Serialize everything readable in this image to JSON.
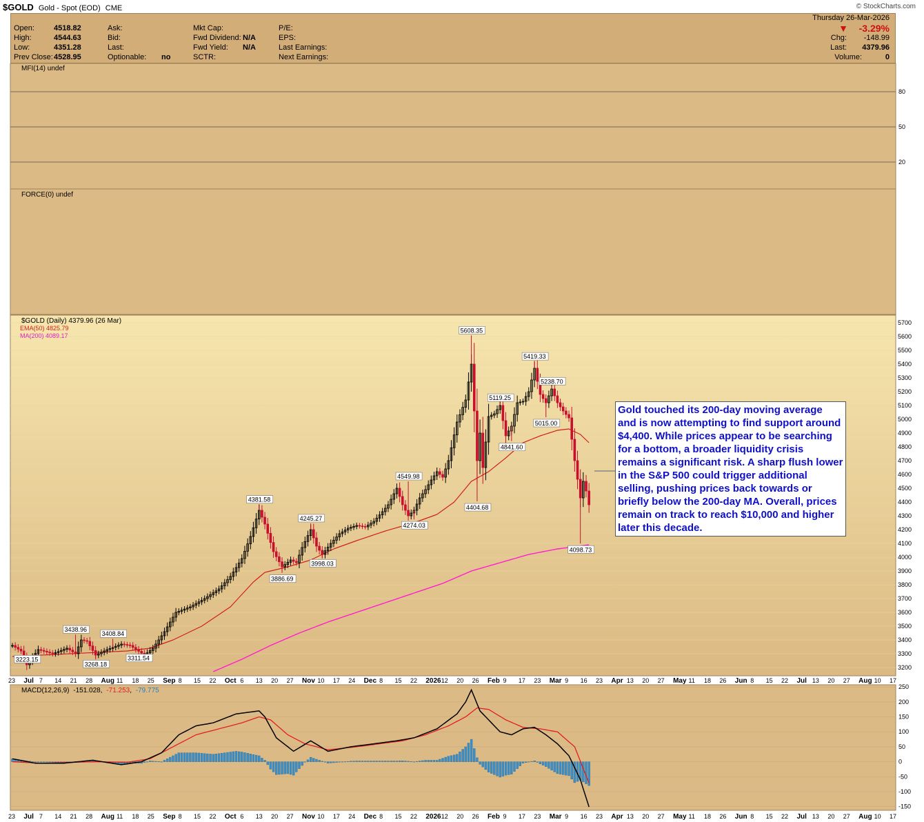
{
  "header": {
    "symbol": "$GOLD",
    "name": "Gold - Spot (EOD)",
    "exchange": "CME",
    "brand": "© StockCharts.com"
  },
  "quote": {
    "open_label": "Open:",
    "open": "4518.82",
    "high_label": "High:",
    "high": "4544.63",
    "low_label": "Low:",
    "low": "4351.28",
    "prev_label": "Prev Close:",
    "prev": "4528.95",
    "ask_label": "Ask:",
    "bid_label": "Bid:",
    "last_label_mid": "Last:",
    "optionable_label": "Optionable:",
    "optionable": "no",
    "mktcap_label": "Mkt Cap:",
    "fwd_div_label": "Fwd Dividend:",
    "fwd_div": "N/A",
    "fwd_yield_label": "Fwd Yield:",
    "fwd_yield": "N/A",
    "sctr_label": "SCTR:",
    "pe_label": "P/E:",
    "eps_label": "EPS:",
    "last_earn_label": "Last Earnings:",
    "next_earn_label": "Next Earnings:",
    "date": "Thursday  26-Mar-2026",
    "arrow": "▼",
    "pct": "-3.29%",
    "chg_label": "Chg:",
    "chg": "-148.99",
    "last_label": "Last:",
    "last": "4379.96",
    "volume_label": "Volume:",
    "volume": "0"
  },
  "colors": {
    "panel_bg": "#d2ad78",
    "panel_border": "#9c8258",
    "up": "#000000",
    "down": "#c8102e",
    "ema": "#d01f1f",
    "ma200": "#ff1fd0",
    "macd": "#000000",
    "signal": "#e02020",
    "hist": "#3a8fc8",
    "note_text": "#1010c8"
  },
  "annotation": "Gold touched its 200-day moving average and is now attempting to find support around $4,400. While prices appear to be searching for a bottom, a broader liquidity crisis remains a significant risk. A sharp flush lower in the S&P 500 could trigger additional selling, pushing prices back towards or briefly below the 200-day MA. Overall, prices remain on track to reach $10,000 and higher later this decade.",
  "chart_data": [
    {
      "type": "line",
      "title": "MFI(14) undef",
      "ylim": [
        0,
        100
      ],
      "y_ticks": [
        80,
        50,
        20
      ],
      "series": []
    },
    {
      "type": "line",
      "title": "FORCE(0) undef",
      "series": []
    },
    {
      "type": "candlestick",
      "title": "$GOLD (Daily) 4379.96 (26 Mar)",
      "legend": [
        {
          "label": "EMA(50) 4825.79"
        },
        {
          "label": "MA(200) 4089.17"
        }
      ],
      "ylim": [
        3150,
        5750
      ],
      "y_ticks": [
        3200,
        3300,
        3400,
        3500,
        3600,
        3700,
        3800,
        3900,
        4000,
        4100,
        4200,
        4300,
        4400,
        4500,
        4600,
        4700,
        4800,
        4900,
        5000,
        5100,
        5200,
        5300,
        5400,
        5500,
        5600,
        5700
      ],
      "x_labels": [
        "23",
        "Jul",
        "7",
        "14",
        "21",
        "28",
        "Aug",
        "11",
        "18",
        "25",
        "Sep",
        "8",
        "15",
        "22",
        "Oct",
        "6",
        "13",
        "20",
        "27",
        "Nov",
        "10",
        "17",
        "24",
        "Dec",
        "8",
        "15",
        "22",
        "2026",
        "12",
        "20",
        "26",
        "Feb",
        "9",
        "17",
        "23",
        "Mar",
        "9",
        "16",
        "23",
        "Apr",
        "13",
        "20",
        "27",
        "May",
        "11",
        "18",
        "26",
        "Jun",
        "8",
        "15",
        "22",
        "Jul",
        "13",
        "20",
        "27",
        "Aug",
        "10",
        "17"
      ],
      "bold_x_labels": [
        "Jul",
        "Aug",
        "Sep",
        "Oct",
        "Nov",
        "Dec",
        "2026",
        "Feb",
        "Mar",
        "Apr",
        "May",
        "Jun"
      ],
      "close_anchors": [
        [
          0,
          3360
        ],
        [
          3,
          3320
        ],
        [
          5,
          3220
        ],
        [
          9,
          3330
        ],
        [
          14,
          3300
        ],
        [
          19,
          3340
        ],
        [
          22,
          3300
        ],
        [
          24,
          3400
        ],
        [
          26,
          3390
        ],
        [
          29,
          3290
        ],
        [
          33,
          3330
        ],
        [
          38,
          3370
        ],
        [
          41,
          3360
        ],
        [
          46,
          3290
        ],
        [
          49,
          3340
        ],
        [
          53,
          3460
        ],
        [
          57,
          3600
        ],
        [
          62,
          3640
        ],
        [
          67,
          3700
        ],
        [
          72,
          3770
        ],
        [
          76,
          3860
        ],
        [
          80,
          3990
        ],
        [
          83,
          4150
        ],
        [
          86,
          4340
        ],
        [
          88,
          4240
        ],
        [
          91,
          4040
        ],
        [
          94,
          3930
        ],
        [
          97,
          3980
        ],
        [
          99,
          3960
        ],
        [
          101,
          4070
        ],
        [
          104,
          4200
        ],
        [
          106,
          4080
        ],
        [
          108,
          4020
        ],
        [
          111,
          4100
        ],
        [
          114,
          4170
        ],
        [
          117,
          4210
        ],
        [
          120,
          4230
        ],
        [
          123,
          4220
        ],
        [
          126,
          4260
        ],
        [
          129,
          4330
        ],
        [
          131,
          4380
        ],
        [
          134,
          4500
        ],
        [
          136,
          4380
        ],
        [
          138,
          4300
        ],
        [
          140,
          4340
        ],
        [
          142,
          4430
        ],
        [
          144,
          4490
        ],
        [
          146,
          4560
        ],
        [
          148,
          4620
        ],
        [
          150,
          4580
        ],
        [
          152,
          4700
        ],
        [
          155,
          4980
        ],
        [
          158,
          5140
        ],
        [
          160,
          5400
        ],
        [
          161,
          5060
        ],
        [
          162,
          4700
        ],
        [
          163,
          4900
        ],
        [
          164,
          4650
        ],
        [
          166,
          5020
        ],
        [
          168,
          5040
        ],
        [
          170,
          5100
        ],
        [
          172,
          4880
        ],
        [
          174,
          4950
        ],
        [
          176,
          5120
        ],
        [
          178,
          5130
        ],
        [
          180,
          5200
        ],
        [
          182,
          5370
        ],
        [
          184,
          5180
        ],
        [
          186,
          5120
        ],
        [
          188,
          5220
        ],
        [
          190,
          5120
        ],
        [
          192,
          5060
        ],
        [
          194,
          5010
        ],
        [
          196,
          4700
        ],
        [
          198,
          4430
        ],
        [
          199,
          4550
        ],
        [
          200,
          4480
        ],
        [
          201,
          4380
        ]
      ],
      "annotations": [
        {
          "label": "5608.35",
          "x": 160,
          "y": 5608.35
        },
        {
          "label": "5419.33",
          "x": 182,
          "y": 5419.33
        },
        {
          "label": "5238.70",
          "x": 188,
          "y": 5238.7
        },
        {
          "label": "5119.25",
          "x": 170,
          "y": 5119.25
        },
        {
          "label": "5015.00",
          "x": 186,
          "y": 5015.0
        },
        {
          "label": "4841.60",
          "x": 174,
          "y": 4841.6
        },
        {
          "label": "4549.98",
          "x": 138,
          "y": 4549.98
        },
        {
          "label": "4404.68",
          "x": 162,
          "y": 4404.68
        },
        {
          "label": "4381.58",
          "x": 86,
          "y": 4381.58
        },
        {
          "label": "4274.03",
          "x": 140,
          "y": 4274.03
        },
        {
          "label": "4245.27",
          "x": 104,
          "y": 4245.27
        },
        {
          "label": "4098.73",
          "x": 198,
          "y": 4098.73
        },
        {
          "label": "3998.03",
          "x": 108,
          "y": 3998.03
        },
        {
          "label": "3886.69",
          "x": 94,
          "y": 3886.69
        },
        {
          "label": "3438.96",
          "x": 22,
          "y": 3438.96
        },
        {
          "label": "3408.84",
          "x": 35,
          "y": 3408.84
        },
        {
          "label": "3311.54",
          "x": 44,
          "y": 3311.54
        },
        {
          "label": "3268.18",
          "x": 29,
          "y": 3268.18
        },
        {
          "label": "3223.15",
          "x": 5,
          "y": 3223.15
        }
      ],
      "ema50_anchors": [
        [
          0,
          3280
        ],
        [
          20,
          3300
        ],
        [
          40,
          3320
        ],
        [
          48,
          3340
        ],
        [
          56,
          3400
        ],
        [
          66,
          3500
        ],
        [
          76,
          3640
        ],
        [
          84,
          3820
        ],
        [
          88,
          3890
        ],
        [
          96,
          3930
        ],
        [
          104,
          3980
        ],
        [
          112,
          4060
        ],
        [
          120,
          4120
        ],
        [
          130,
          4190
        ],
        [
          140,
          4250
        ],
        [
          148,
          4310
        ],
        [
          154,
          4400
        ],
        [
          160,
          4550
        ],
        [
          166,
          4620
        ],
        [
          172,
          4720
        ],
        [
          178,
          4830
        ],
        [
          184,
          4880
        ],
        [
          190,
          4920
        ],
        [
          194,
          4930
        ],
        [
          198,
          4890
        ],
        [
          201,
          4830
        ]
      ],
      "ma200_anchors": [
        [
          70,
          3170
        ],
        [
          80,
          3260
        ],
        [
          90,
          3360
        ],
        [
          100,
          3450
        ],
        [
          110,
          3530
        ],
        [
          120,
          3600
        ],
        [
          130,
          3670
        ],
        [
          140,
          3740
        ],
        [
          150,
          3810
        ],
        [
          160,
          3900
        ],
        [
          170,
          3960
        ],
        [
          180,
          4020
        ],
        [
          190,
          4060
        ],
        [
          201,
          4090
        ]
      ]
    },
    {
      "type": "bar",
      "title": "MACD(12,26,9)",
      "legend": [
        "-151.028",
        "-71.253",
        "-79.775"
      ],
      "ylim": [
        -160,
        255
      ],
      "y_ticks": [
        250,
        200,
        150,
        100,
        50,
        0,
        -50,
        -100,
        -150
      ],
      "macd_anchors": [
        [
          0,
          10
        ],
        [
          8,
          -5
        ],
        [
          18,
          -5
        ],
        [
          28,
          5
        ],
        [
          38,
          -10
        ],
        [
          45,
          0
        ],
        [
          52,
          30
        ],
        [
          58,
          90
        ],
        [
          64,
          120
        ],
        [
          70,
          130
        ],
        [
          78,
          160
        ],
        [
          86,
          170
        ],
        [
          88,
          150
        ],
        [
          92,
          80
        ],
        [
          98,
          35
        ],
        [
          104,
          70
        ],
        [
          110,
          35
        ],
        [
          118,
          50
        ],
        [
          126,
          60
        ],
        [
          134,
          70
        ],
        [
          140,
          80
        ],
        [
          148,
          110
        ],
        [
          155,
          160
        ],
        [
          158,
          200
        ],
        [
          160,
          240
        ],
        [
          163,
          170
        ],
        [
          166,
          140
        ],
        [
          170,
          100
        ],
        [
          174,
          90
        ],
        [
          178,
          110
        ],
        [
          182,
          115
        ],
        [
          186,
          90
        ],
        [
          190,
          60
        ],
        [
          194,
          20
        ],
        [
          198,
          -60
        ],
        [
          201,
          -151
        ]
      ],
      "signal_anchors": [
        [
          0,
          0
        ],
        [
          10,
          -5
        ],
        [
          20,
          -2
        ],
        [
          30,
          0
        ],
        [
          40,
          -2
        ],
        [
          48,
          10
        ],
        [
          56,
          50
        ],
        [
          64,
          90
        ],
        [
          72,
          110
        ],
        [
          80,
          130
        ],
        [
          86,
          150
        ],
        [
          90,
          140
        ],
        [
          96,
          90
        ],
        [
          102,
          60
        ],
        [
          110,
          40
        ],
        [
          120,
          50
        ],
        [
          128,
          60
        ],
        [
          136,
          70
        ],
        [
          144,
          90
        ],
        [
          152,
          120
        ],
        [
          158,
          150
        ],
        [
          162,
          180
        ],
        [
          166,
          175
        ],
        [
          172,
          140
        ],
        [
          178,
          115
        ],
        [
          184,
          110
        ],
        [
          190,
          100
        ],
        [
          196,
          50
        ],
        [
          201,
          -71
        ]
      ]
    }
  ]
}
